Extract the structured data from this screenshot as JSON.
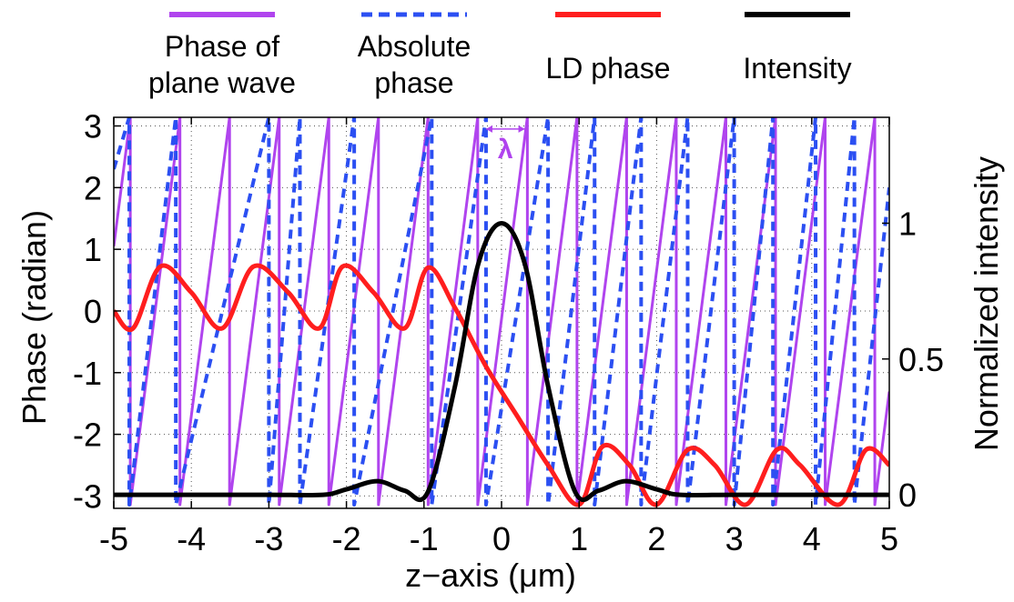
{
  "chart_data": {
    "type": "line",
    "xlabel": "z−axis (μm)",
    "ylabel_left": "Phase (radian)",
    "ylabel_right": "Normalized intensity",
    "xlim": [
      -5,
      5
    ],
    "ylim_left": [
      -3.2,
      3.14
    ],
    "ylim_right": [
      -0.05,
      1.39
    ],
    "x_ticks": [
      "-5",
      "-4",
      "-3",
      "-2",
      "-1",
      "0",
      "1",
      "2",
      "3",
      "4",
      "5"
    ],
    "y_left_ticks": [
      "-3",
      "-2",
      "-1",
      "0",
      "1",
      "2",
      "3"
    ],
    "y_right_ticks": [
      "0",
      "0.5",
      "1"
    ],
    "grid": true,
    "legend_position": "top",
    "annotation": {
      "text": "λ",
      "color": "#b044ee",
      "x_from": -0.2,
      "x_to": 0.3,
      "y": 2.95
    },
    "series": [
      {
        "name": "Phase of\nplane wave",
        "axis": "left",
        "color": "#b044ee",
        "dash": "solid",
        "wavelength_um": 0.64,
        "phase_at_x_min": 1.05,
        "range": [
          -3.14159,
          3.14159
        ]
      },
      {
        "name": "Absolute\nphase",
        "axis": "left",
        "color": "#2b4ff2",
        "dash": "dashed",
        "wrap_points": [
          -4.8,
          -4.2,
          -3.0,
          -2.6,
          -1.9,
          -0.9,
          -0.2,
          0.6,
          1.2,
          1.8,
          2.4,
          3.0,
          3.5,
          4.05,
          4.55
        ],
        "range": [
          -3.14159,
          3.14159
        ]
      },
      {
        "name": "LD phase",
        "axis": "left",
        "color": "#ff1e1e",
        "dash": "solid",
        "x": [
          -5,
          -4.75,
          -4.4,
          -4.0,
          -3.6,
          -3.2,
          -2.75,
          -2.35,
          -2.05,
          -1.65,
          -1.25,
          -0.95,
          -0.6,
          -0.2,
          0.2,
          0.6,
          1.0,
          1.3,
          1.65,
          2.0,
          2.4,
          2.75,
          3.15,
          3.55,
          3.85,
          4.35,
          4.7,
          5.0
        ],
        "y": [
          0.0,
          -0.28,
          0.72,
          0.3,
          -0.28,
          0.72,
          0.3,
          -0.28,
          0.72,
          0.3,
          -0.28,
          0.7,
          0.05,
          -0.9,
          -1.7,
          -2.5,
          -3.14,
          -2.2,
          -2.5,
          -3.14,
          -2.25,
          -2.5,
          -3.14,
          -2.25,
          -2.5,
          -3.14,
          -2.25,
          -2.5
        ]
      },
      {
        "name": "Intensity",
        "axis": "right",
        "color": "#000000",
        "dash": "solid",
        "x": [
          -5,
          -4.0,
          -3.0,
          -2.3,
          -2.0,
          -1.6,
          -1.25,
          -0.95,
          -0.6,
          -0.3,
          0,
          0.3,
          0.6,
          0.95,
          1.25,
          1.6,
          2.0,
          2.3,
          3.0,
          4.0,
          5.0
        ],
        "y": [
          0.0,
          0.0,
          0.0,
          0.0,
          0.02,
          0.05,
          0.015,
          0.01,
          0.4,
          0.85,
          1.0,
          0.85,
          0.4,
          0.01,
          0.015,
          0.05,
          0.02,
          0.0,
          0.0,
          0.0,
          0.0
        ]
      }
    ]
  }
}
